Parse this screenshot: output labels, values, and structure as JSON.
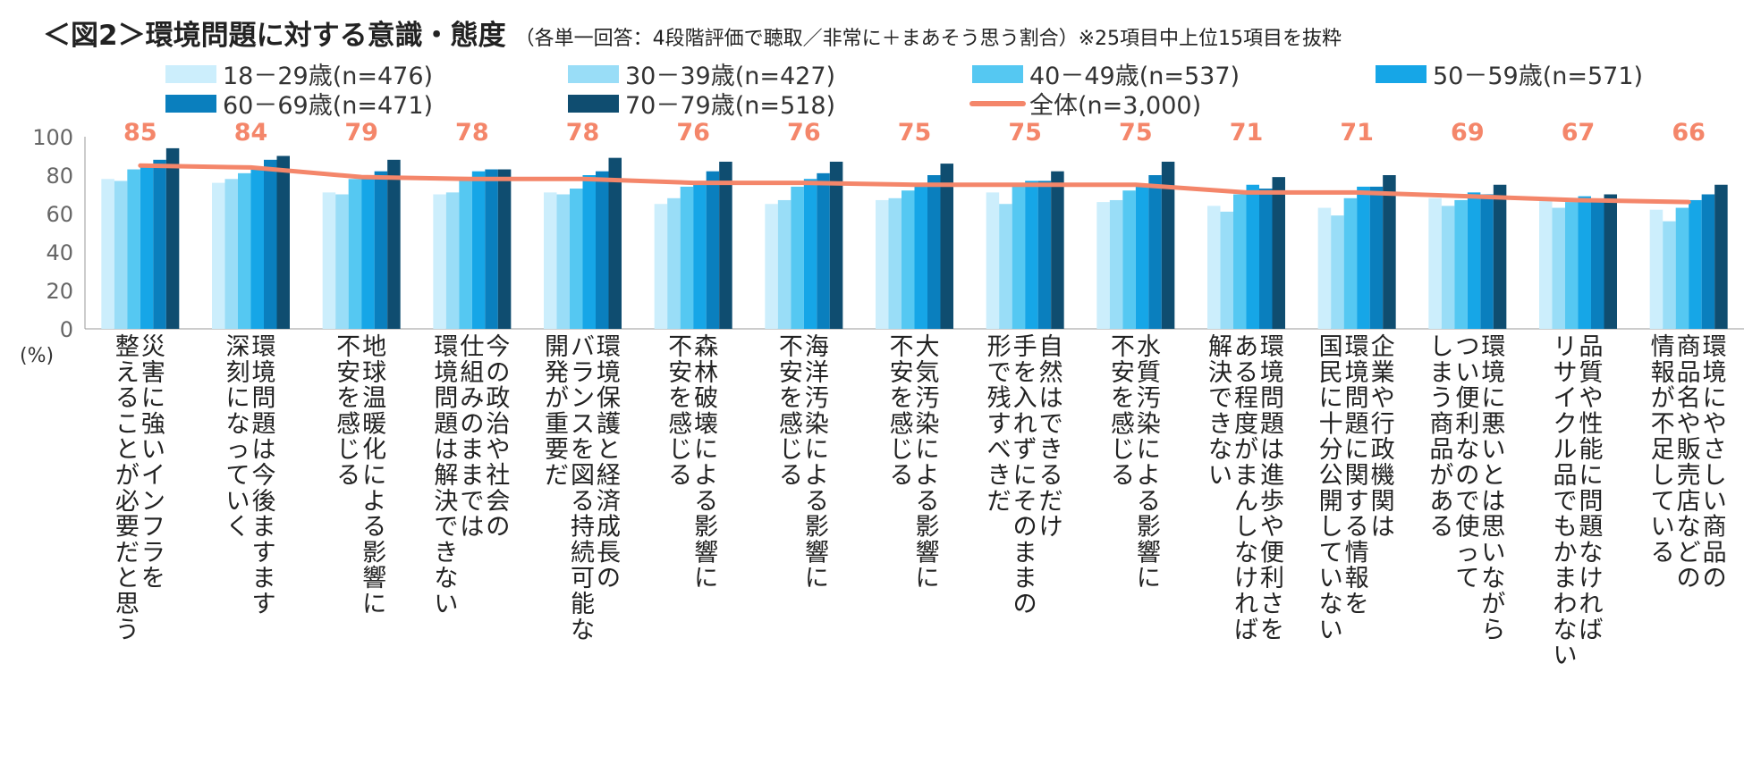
{
  "chart_data": {
    "type": "bar",
    "title": "＜図2＞環境問題に対する意識・態度",
    "subtitle": "（各単一回答：4段階評価で聴取／非常に＋まあそう思う割合）※25項目中上位15項目を抜粋",
    "ylabel": "(%)",
    "ylim": [
      0,
      100
    ],
    "yticks": [
      0,
      20,
      40,
      60,
      80,
      100
    ],
    "categories": [
      "災害に強いインフラを|整えることが必要だと思う",
      "環境問題は今後ますます|深刻になっていく",
      "地球温暖化による影響に|不安を感じる",
      "今の政治や社会の|仕組みのままでは|環境問題は解決できない",
      "環境保護と経済成長の|バランスを図る持続可能な|開発が重要だ",
      "森林破壊による影響に|不安を感じる",
      "海洋汚染による影響に|不安を感じる",
      "大気汚染による影響に|不安を感じる",
      "自然はできるだけ|手を入れずにそのままの|形で残すべきだ",
      "水質汚染による影響に|不安を感じる",
      "環境問題は進歩や便利さを|ある程度がまんしなければ|解決できない",
      "企業や行政機関は|環境問題に関する情報を|国民に十分公開していない",
      "環境に悪いとは思いながら|つい便利なので使って|しまう商品がある",
      "品質や性能に問題なければ|リサイクル品でもかまわない",
      "環境にやさしい商品の|商品名や販売店などの|情報が不足している"
    ],
    "series": [
      {
        "name": "18－29歳(n=476)",
        "color": "#CCEEFC",
        "values": [
          78,
          76,
          71,
          70,
          71,
          65,
          65,
          67,
          71,
          66,
          64,
          63,
          68,
          67,
          62
        ]
      },
      {
        "name": "30－39歳(n=427)",
        "color": "#99DDF7",
        "values": [
          77,
          78,
          70,
          71,
          70,
          68,
          67,
          68,
          65,
          67,
          61,
          59,
          64,
          63,
          56
        ]
      },
      {
        "name": "40－49歳(n=537)",
        "color": "#55C8F2",
        "values": [
          83,
          81,
          78,
          78,
          73,
          74,
          74,
          72,
          74,
          72,
          70,
          68,
          67,
          66,
          63
        ]
      },
      {
        "name": "50－59歳(n=571)",
        "color": "#16A6E7",
        "values": [
          85,
          84,
          80,
          82,
          80,
          76,
          78,
          76,
          77,
          75,
          75,
          74,
          71,
          69,
          67
        ]
      },
      {
        "name": "60－69歳(n=471)",
        "color": "#0A7FBE",
        "values": [
          88,
          88,
          82,
          83,
          82,
          82,
          81,
          80,
          77,
          80,
          73,
          74,
          70,
          67,
          70
        ]
      },
      {
        "name": "70－79歳(n=518)",
        "color": "#0F4D70",
        "values": [
          94,
          90,
          88,
          83,
          89,
          87,
          87,
          86,
          82,
          87,
          79,
          80,
          75,
          70,
          75
        ]
      }
    ],
    "total": {
      "name": "全体(n=3,000)",
      "color": "#F4866A",
      "values": [
        85,
        84,
        79,
        78,
        78,
        76,
        76,
        75,
        75,
        75,
        71,
        71,
        69,
        67,
        66
      ]
    }
  }
}
